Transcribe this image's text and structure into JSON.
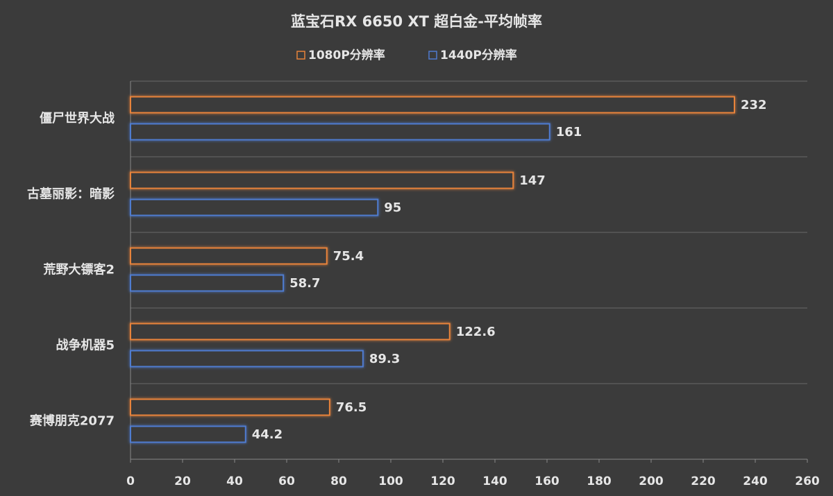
{
  "chart_data": {
    "type": "bar",
    "orientation": "horizontal",
    "title": "蓝宝石RX 6650 XT 超白金-平均帧率",
    "categories": [
      "僵尸世界大战",
      "古墓丽影：暗影",
      "荒野大镖客2",
      "战争机器5",
      "赛博朋克2077"
    ],
    "series": [
      {
        "name": "1080P分辨率",
        "color": "#e8833a",
        "values": [
          232,
          147,
          75.4,
          122.6,
          76.5
        ]
      },
      {
        "name": "1440P分辨率",
        "color": "#4f7bd0",
        "values": [
          161,
          95,
          58.7,
          89.3,
          44.2
        ]
      }
    ],
    "xlim": [
      0,
      260
    ],
    "xticks": [
      0,
      20,
      40,
      60,
      80,
      100,
      120,
      140,
      160,
      180,
      200,
      220,
      240,
      260
    ],
    "legend": "top"
  }
}
